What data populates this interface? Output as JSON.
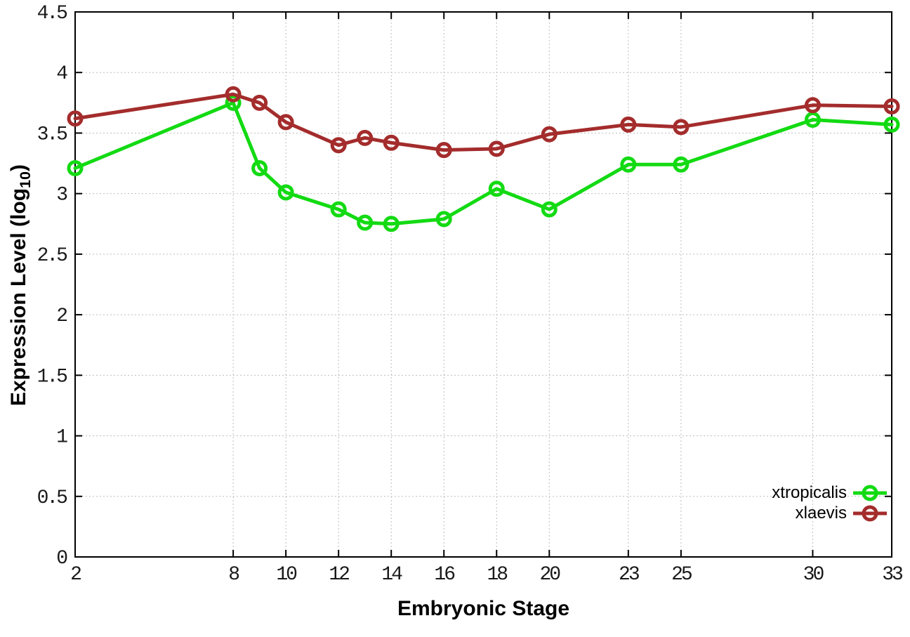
{
  "figure": {
    "x_axis_title": "Embryonic Stage",
    "y_axis_title_prefix": "Expression Level (log",
    "y_axis_title_subscript": "10",
    "y_axis_title_suffix": ")"
  },
  "chart_data": {
    "type": "line",
    "title": "",
    "xlabel": "Embryonic Stage",
    "ylabel": "Expression Level (log10)",
    "x": [
      2,
      8,
      9,
      10,
      12,
      13,
      14,
      16,
      18,
      20,
      23,
      25,
      30,
      33
    ],
    "series": [
      {
        "name": "xtropicalis",
        "color": "#13da13",
        "marker": "open-circle",
        "values": [
          3.21,
          3.75,
          3.21,
          3.01,
          2.87,
          2.76,
          2.75,
          2.79,
          3.04,
          2.87,
          3.24,
          3.24,
          3.61,
          3.57
        ]
      },
      {
        "name": "xlaevis",
        "color": "#a42c2c",
        "marker": "open-circle",
        "values": [
          3.62,
          3.82,
          3.75,
          3.59,
          3.4,
          3.46,
          3.42,
          3.36,
          3.37,
          3.49,
          3.57,
          3.55,
          3.73,
          3.72
        ]
      }
    ],
    "xlim": [
      2,
      33
    ],
    "ylim": [
      0,
      4.5
    ],
    "xticks": [
      2,
      8,
      10,
      12,
      14,
      16,
      18,
      20,
      23,
      25,
      30,
      33
    ],
    "yticks": [
      0,
      0.5,
      1,
      1.5,
      2,
      2.5,
      3,
      3.5,
      4,
      4.5
    ],
    "grid": true,
    "gridline_color": "#bdbdbd",
    "legend_position": "inside-bottom-right"
  }
}
